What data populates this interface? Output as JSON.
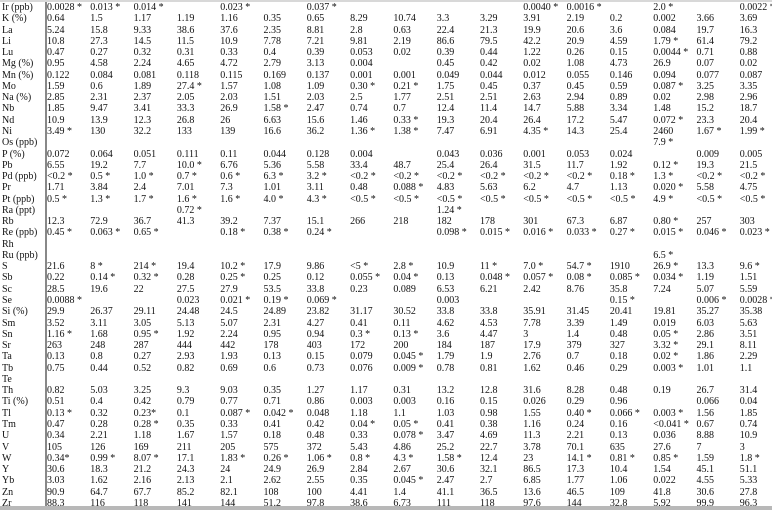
{
  "rows": [
    {
      "label": "Ir (ppb)",
      "values": [
        "0.0028 *",
        "0.013 *",
        "0.014 *",
        "",
        "0.023 *",
        "",
        "0.037 *",
        "",
        "",
        "",
        "",
        "0.0040 *",
        "0.0016 *",
        "",
        "2.0 *",
        "",
        "0.0022 *"
      ]
    },
    {
      "label": "K (%)",
      "values": [
        "0.64",
        "1.5",
        "1.17",
        "1.19",
        "1.16",
        "0.35",
        "0.65",
        "8.29",
        "10.74",
        "3.3",
        "3.29",
        "3.91",
        "2.19",
        "0.2",
        "0.002",
        "3.66",
        "3.69"
      ]
    },
    {
      "label": "La",
      "values": [
        "5.24",
        "15.8",
        "9.33",
        "38.6",
        "37.6",
        "2.35",
        "8.81",
        "2.8",
        "0.63",
        "22.4",
        "21.3",
        "19.9",
        "20.6",
        "3.6",
        "0.084",
        "19.7",
        "16.3"
      ]
    },
    {
      "label": "Li",
      "values": [
        "10.8",
        "27.3",
        "14.5",
        "11.5",
        "10.9",
        "7.78",
        "7.21",
        "9.81",
        "2.19",
        "86.6",
        "79.5",
        "42.2",
        "20.9",
        "4.59",
        "1.79 *",
        "61.4",
        "79.2"
      ]
    },
    {
      "label": "Lu",
      "values": [
        "0.47",
        "0.27",
        "0.32",
        "0.31",
        "0.33",
        "0.4",
        "0.39",
        "0.053",
        "0.02",
        "0.39",
        "0.44",
        "1.22",
        "0.26",
        "0.15",
        "0.0044 *",
        "0.71",
        "0.88"
      ]
    },
    {
      "label": "Mg (%)",
      "values": [
        "0.95",
        "4.58",
        "2.24",
        "4.65",
        "4.72",
        "2.79",
        "3.13",
        "0.004",
        "",
        "0.45",
        "0.42",
        "0.02",
        "1.08",
        "4.73",
        "26.9",
        "0.07",
        "0.02"
      ]
    },
    {
      "label": "Mn (%)",
      "values": [
        "0.122",
        "0.084",
        "0.081",
        "0.118",
        "0.115",
        "0.169",
        "0.137",
        "0.001",
        "0.001",
        "0.049",
        "0.044",
        "0.012",
        "0.055",
        "0.146",
        "0.094",
        "0.077",
        "0.087"
      ]
    },
    {
      "label": "Mo",
      "values": [
        "1.59",
        "0.6",
        "1.89",
        "27.4 *",
        "1.57",
        "1.08",
        "1.09",
        "0.30 *",
        "0.21 *",
        "1.75",
        "0.45",
        "0.37",
        "0.45",
        "0.59",
        "0.087 *",
        "3.25",
        "3.35"
      ]
    },
    {
      "label": "Na (%)",
      "values": [
        "2.85",
        "2.31",
        "2.37",
        "2.05",
        "2.03",
        "1.51",
        "2.03",
        "2.5",
        "1.77",
        "2.51",
        "2.51",
        "2.63",
        "2.94",
        "0.89",
        "0.02",
        "2.98",
        "2.96"
      ]
    },
    {
      "label": "Nb",
      "values": [
        "1.85",
        "9.47",
        "3.41",
        "33.3",
        "26.9",
        "1.58 *",
        "2.47",
        "0.74",
        "0.7",
        "12.4",
        "11.4",
        "14.7",
        "5.88",
        "3.34",
        "1.48",
        "15.2",
        "18.7"
      ]
    },
    {
      "label": "Nd",
      "values": [
        "10.9",
        "13.9",
        "12.3",
        "26.8",
        "26",
        "6.63",
        "15.6",
        "1.46",
        "0.33 *",
        "19.3",
        "20.4",
        "26.4",
        "17.2",
        "5.47",
        "0.072 *",
        "23.3",
        "20.4"
      ]
    },
    {
      "label": "Ni",
      "values": [
        "3.49 *",
        "130",
        "32.2",
        "133",
        "139",
        "16.6",
        "36.2",
        "1.36 *",
        "1.38 *",
        "7.47",
        "6.91",
        "4.35 *",
        "14.3",
        "25.4",
        "2460",
        "1.67 *",
        "1.99 *"
      ]
    },
    {
      "label": "Os (ppb)",
      "values": [
        "",
        "",
        "",
        "",
        "",
        "",
        "",
        "",
        "",
        "",
        "",
        "",
        "",
        "",
        "7.9 *",
        "",
        ""
      ]
    },
    {
      "label": "P (%)",
      "values": [
        "0.072",
        "0.064",
        "0.051",
        "0.111",
        "0.11",
        "0.044",
        "0.128",
        "0.004",
        "",
        "0.043",
        "0.036",
        "0.001",
        "0.053",
        "0.024",
        "",
        "0.009",
        "0.005"
      ]
    },
    {
      "label": "Pb",
      "values": [
        "6.55",
        "19.2",
        "7.7",
        "10.0 *",
        "6.76",
        "5.36",
        "5.58",
        "33.4",
        "48.7",
        "25.4",
        "26.4",
        "31.5",
        "11.7",
        "1.92",
        "0.12 *",
        "19.3",
        "21.5"
      ]
    },
    {
      "label": "Pd (ppb)",
      "values": [
        "<0.2 *",
        "0.5 *",
        "1.0 *",
        "0.7 *",
        "0.6 *",
        "6.3 *",
        "3.2 *",
        "<0.2 *",
        "<0.2 *",
        "<0.2 *",
        "<0.2 *",
        "<0.2 *",
        "<0.2 *",
        "0.18 *",
        "1.3 *",
        "<0.2 *",
        "<0.2 *"
      ]
    },
    {
      "label": "Pr",
      "values": [
        "1.71",
        "3.84",
        "2.4",
        "7.01",
        "7.3",
        "1.01",
        "3.11",
        "0.48",
        "0.088 *",
        "4.83",
        "5.63",
        "6.2",
        "4.7",
        "1.13",
        "0.020 *",
        "5.58",
        "4.75"
      ]
    },
    {
      "label": "Pt (ppb)",
      "values": [
        "0.5 *",
        "1.3 *",
        "1.7 *",
        "1.6 *",
        "1.6 *",
        "4.0 *",
        "4.3 *",
        "<0.5 *",
        "<0.5 *",
        "<0.5 *",
        "<0.5 *",
        "<0.5 *",
        "<0.5 *",
        "<0.5 *",
        "4.9 *",
        "<0.5 *",
        "<0.5 *"
      ]
    },
    {
      "label": "Ra (ppt)",
      "values": [
        "",
        "",
        "",
        "0.72 *",
        "",
        "",
        "",
        "",
        "",
        "1.24 *",
        "",
        "",
        "",
        "",
        "",
        "",
        ""
      ]
    },
    {
      "label": "Rb",
      "values": [
        "12.3",
        "72.9",
        "36.7",
        "41.3",
        "39.2",
        "7.37",
        "15.1",
        "266",
        "218",
        "182",
        "178",
        "301",
        "67.3",
        "6.87",
        "0.80 *",
        "257",
        "303"
      ]
    },
    {
      "label": "Re (ppb)",
      "values": [
        "0.45 *",
        "0.063 *",
        "0.65 *",
        "",
        "0.18 *",
        "0.38 *",
        "0.24 *",
        "",
        "",
        "0.098 *",
        "0.015 *",
        "0.016 *",
        "0.033 *",
        "0.27 *",
        "0.015 *",
        "0.046 *",
        "0.023 *"
      ]
    },
    {
      "label": "Rh",
      "values": [
        "",
        "",
        "",
        "",
        "",
        "",
        "",
        "",
        "",
        "",
        "",
        "",
        "",
        "",
        "",
        "",
        ""
      ]
    },
    {
      "label": "Ru (ppb)",
      "values": [
        "",
        "",
        "",
        "",
        "",
        "",
        "",
        "",
        "",
        "",
        "",
        "",
        "",
        "",
        "6.5 *",
        "",
        ""
      ]
    },
    {
      "label": "S",
      "values": [
        "21.6",
        "8 *",
        "214 *",
        "19.4",
        "10.2 *",
        "17.9",
        "9.86",
        "<5 *",
        "2.8 *",
        "10.9",
        "11 *",
        "7.0 *",
        "54.7 *",
        "1910",
        "26.9 *",
        "13.3",
        "9.6 *"
      ]
    },
    {
      "label": "Sb",
      "values": [
        "0.22",
        "0.14 *",
        "0.32 *",
        "0.28",
        "0.25 *",
        "0.25",
        "0.12",
        "0.055 *",
        "0.04 *",
        "0.13",
        "0.048 *",
        "0.057 *",
        "0.08 *",
        "0.085 *",
        "0.034 *",
        "1.19",
        "1.51"
      ]
    },
    {
      "label": "Sc",
      "values": [
        "28.5",
        "19.6",
        "22",
        "27.5",
        "27.9",
        "53.5",
        "33.8",
        "0.23",
        "0.089",
        "6.53",
        "6.21",
        "2.42",
        "8.76",
        "35.8",
        "7.24",
        "5.07",
        "5.59"
      ]
    },
    {
      "label": "Se",
      "values": [
        "0.0088 *",
        "",
        "",
        "0.023",
        "0.021 *",
        "0.19 *",
        "0.069 *",
        "",
        "",
        "0.003",
        "",
        "",
        "",
        "0.15 *",
        "",
        "0.006 *",
        "0.0028 *"
      ]
    },
    {
      "label": "Si (%)",
      "values": [
        "29.9",
        "26.37",
        "29.11",
        "24.48",
        "24.5",
        "24.89",
        "23.82",
        "31.17",
        "30.52",
        "33.8",
        "33.8",
        "35.91",
        "31.45",
        "20.41",
        "19.81",
        "35.27",
        "35.38"
      ]
    },
    {
      "label": "Sm",
      "values": [
        "3.52",
        "3.11",
        "3.05",
        "5.13",
        "5.07",
        "2.31",
        "4.27",
        "0.41",
        "0.11",
        "4.62",
        "4.53",
        "7.78",
        "3.39",
        "1.49",
        "0.019",
        "6.03",
        "5.63"
      ]
    },
    {
      "label": "Sn",
      "values": [
        "1.16 *",
        "1.68",
        "0.95 *",
        "1.92",
        "2.24",
        "0.95",
        "0.94",
        "0.3 *",
        "0.13 *",
        "3.6",
        "4.47",
        "3",
        "1.4",
        "0.48",
        "0.05 *",
        "2.86",
        "3.51"
      ]
    },
    {
      "label": "Sr",
      "values": [
        "263",
        "248",
        "287",
        "444",
        "442",
        "178",
        "403",
        "172",
        "200",
        "184",
        "187",
        "17.9",
        "379",
        "327",
        "3.32 *",
        "29.1",
        "8.11"
      ]
    },
    {
      "label": "Ta",
      "values": [
        "0.13",
        "0.8",
        "0.27",
        "2.93",
        "1.93",
        "0.13",
        "0.15",
        "0.079",
        "0.045 *",
        "1.79",
        "1.9",
        "2.76",
        "0.7",
        "0.18",
        "0.02 *",
        "1.86",
        "2.29"
      ]
    },
    {
      "label": "Tb",
      "values": [
        "0.75",
        "0.44",
        "0.52",
        "0.82",
        "0.69",
        "0.6",
        "0.73",
        "0.076",
        "0.009 *",
        "0.78",
        "0.81",
        "1.62",
        "0.46",
        "0.29",
        "0.003 *",
        "1.01",
        "1.1"
      ]
    },
    {
      "label": "Te",
      "values": [
        "",
        "",
        "",
        "",
        "",
        "",
        "",
        "",
        "",
        "",
        "",
        "",
        "",
        "",
        "",
        "",
        ""
      ]
    },
    {
      "label": "Th",
      "values": [
        "0.82",
        "5.03",
        "3.25",
        "9.3",
        "9.03",
        "0.35",
        "1.27",
        "1.17",
        "0.31",
        "13.2",
        "12.8",
        "31.6",
        "8.28",
        "0.48",
        "0.19",
        "26.7",
        "31.4"
      ]
    },
    {
      "label": "Ti (%)",
      "values": [
        "0.51",
        "0.4",
        "0.42",
        "0.79",
        "0.77",
        "0.71",
        "0.86",
        "0.003",
        "0.003",
        "0.16",
        "0.15",
        "0.026",
        "0.29",
        "0.96",
        "",
        "0.066",
        "0.04"
      ]
    },
    {
      "label": "Tl",
      "values": [
        "0.13 *",
        "0.32",
        "0.23*",
        "0.1",
        "0.087 *",
        "0.042 *",
        "0.048",
        "1.18",
        "1.1",
        "1.03",
        "0.98",
        "1.55",
        "0.40 *",
        "0.066 *",
        "0.003 *",
        "1.56",
        "1.85"
      ]
    },
    {
      "label": "Tm",
      "values": [
        "0.47",
        "0.28",
        "0.28 *",
        "0.35",
        "0.33",
        "0.41",
        "0.42",
        "0.04 *",
        "0.05 *",
        "0.41",
        "0.38",
        "1.16",
        "0.24",
        "0.16",
        "<0.041 *",
        "0.67",
        "0.74"
      ]
    },
    {
      "label": "U",
      "values": [
        "0.34",
        "2.21",
        "1.18",
        "1.67",
        "1.57",
        "0.18",
        "0.48",
        "0.33",
        "0.078 *",
        "3.47",
        "4.69",
        "11.3",
        "2.21",
        "0.13",
        "0.036",
        "8.88",
        "10.9"
      ]
    },
    {
      "label": "V",
      "values": [
        "105",
        "126",
        "169",
        "211",
        "205",
        "575",
        "372",
        "5.43",
        "4.86",
        "25.2",
        "22.7",
        "3.78",
        "70.1",
        "635",
        "27.6",
        "7",
        "3"
      ]
    },
    {
      "label": "W",
      "values": [
        "0.34*",
        "0.99 *",
        "8.07 *",
        "17.1",
        "1.83 *",
        "0.26 *",
        "1.06 *",
        "0.8 *",
        "4.3 *",
        "1.58 *",
        "12.4",
        "23",
        "14.1 *",
        "0.81 *",
        "0.85 *",
        "1.59",
        "1.8 *"
      ]
    },
    {
      "label": "Y",
      "values": [
        "30.6",
        "18.3",
        "21.2",
        "24.3",
        "24",
        "24.9",
        "26.9",
        "2.84",
        "2.67",
        "30.6",
        "32.1",
        "86.5",
        "17.3",
        "10.4",
        "1.54",
        "45.1",
        "51.1"
      ]
    },
    {
      "label": "Yb",
      "values": [
        "3.03",
        "1.62",
        "2.16",
        "2.13",
        "2.1",
        "2.62",
        "2.55",
        "0.35",
        "0.045 *",
        "2.47",
        "2.7",
        "6.85",
        "1.77",
        "1.06",
        "0.022",
        "4.55",
        "5.33"
      ]
    },
    {
      "label": "Zn",
      "values": [
        "90.9",
        "64.7",
        "67.7",
        "85.2",
        "82.1",
        "108",
        "100",
        "4.41",
        "1.4",
        "41.1",
        "36.5",
        "13.6",
        "46.5",
        "109",
        "41.8",
        "30.6",
        "27.8"
      ]
    },
    {
      "label": "Zr",
      "values": [
        "88.3",
        "116",
        "118",
        "141",
        "144",
        "51.2",
        "97.8",
        "38.6",
        "6.73",
        "111",
        "118",
        "97.6",
        "144",
        "32.8",
        "5.92",
        "99.9",
        "96.3"
      ]
    }
  ]
}
